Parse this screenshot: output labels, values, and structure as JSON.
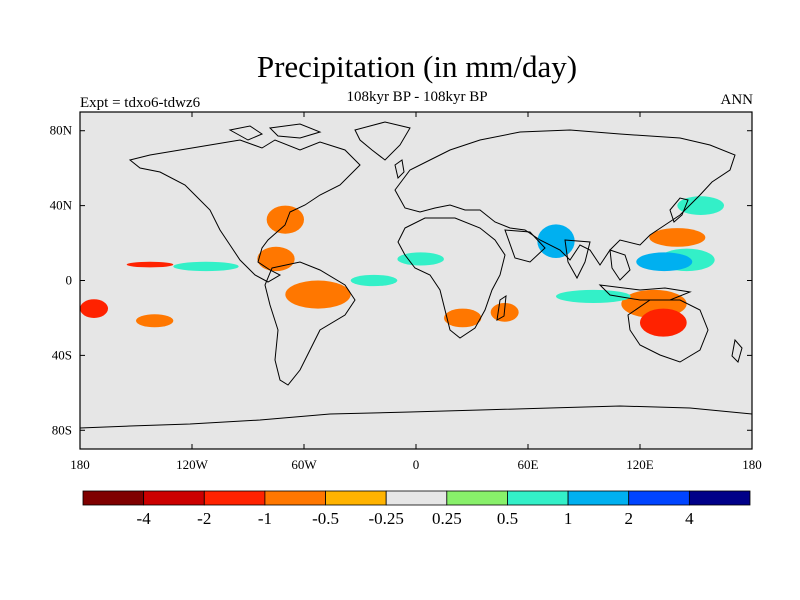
{
  "figure": {
    "title": "Precipitation (in mm/day)",
    "subtitle": "108kyr BP - 108kyr BP",
    "left_label": "Expt = tdxo6-tdwz6",
    "right_label": "ANN"
  },
  "map": {
    "projection": "cylindrical-equidistant",
    "lon_range": [
      -180,
      180
    ],
    "lat_range": [
      -90,
      90
    ],
    "background_color": "#e6e6e6",
    "coastline_color": "#000000",
    "x_ticks": [
      {
        "lon": -180,
        "label": "180"
      },
      {
        "lon": -120,
        "label": "120W"
      },
      {
        "lon": -60,
        "label": "60W"
      },
      {
        "lon": 0,
        "label": "0"
      },
      {
        "lon": 60,
        "label": "60E"
      },
      {
        "lon": 120,
        "label": "120E"
      },
      {
        "lon": 180,
        "label": "180"
      }
    ],
    "y_ticks": [
      {
        "lat": 80,
        "label": "80N"
      },
      {
        "lat": 40,
        "label": "40N"
      },
      {
        "lat": 0,
        "label": "0"
      },
      {
        "lat": -40,
        "label": "40S"
      },
      {
        "lat": -80,
        "label": "80S"
      }
    ]
  },
  "colorbar": {
    "colors": [
      "#7f0000",
      "#cc0000",
      "#ff2200",
      "#ff7700",
      "#ffb300",
      "#e6e6e6",
      "#88f06a",
      "#33f0c8",
      "#00b0f0",
      "#0044ff",
      "#000088"
    ],
    "labels": [
      "-4",
      "-2",
      "-1",
      "-0.5",
      "-0.25",
      "0.25",
      "0.5",
      "1",
      "2",
      "4"
    ]
  },
  "chart_data": {
    "type": "heatmap",
    "title": "Precipitation (in mm/day)",
    "subtitle": "108kyr BP - 108kyr BP",
    "xlim": [
      -180,
      180
    ],
    "ylim": [
      -90,
      90
    ],
    "levels": [
      -4,
      -2,
      -1,
      -0.5,
      -0.25,
      0.25,
      0.5,
      1,
      2,
      4
    ],
    "features": [
      {
        "name": "wpac-n-green",
        "lon": [
          130,
          160
        ],
        "lat": [
          5,
          17
        ],
        "level": 0.5
      },
      {
        "name": "wpac-n-cyan",
        "lon": [
          118,
          148
        ],
        "lat": [
          5,
          15
        ],
        "level": 1
      },
      {
        "name": "wpac-n-orange",
        "lon": [
          125,
          155
        ],
        "lat": [
          18,
          28
        ],
        "level": -0.5
      },
      {
        "name": "arabian-sea",
        "lon": [
          65,
          85
        ],
        "lat": [
          12,
          30
        ],
        "level": 1
      },
      {
        "name": "kuroshio",
        "lon": [
          140,
          165
        ],
        "lat": [
          35,
          45
        ],
        "level": 0.5
      },
      {
        "name": "maritime-cont",
        "lon": [
          110,
          145
        ],
        "lat": [
          -20,
          -5
        ],
        "level": -0.5
      },
      {
        "name": "australia",
        "lon": [
          120,
          145
        ],
        "lat": [
          -30,
          -15
        ],
        "level": -1
      },
      {
        "name": "indian-ocean-s",
        "lon": [
          75,
          115
        ],
        "lat": [
          -12,
          -5
        ],
        "level": 0.5
      },
      {
        "name": "se-pacific-w",
        "lon": [
          -180,
          -165
        ],
        "lat": [
          -20,
          -10
        ],
        "level": -1
      },
      {
        "name": "se-pacific-mid",
        "lon": [
          -150,
          -130
        ],
        "lat": [
          -25,
          -18
        ],
        "level": -0.5
      },
      {
        "name": "e-pacific-itcz",
        "lon": [
          -130,
          -95
        ],
        "lat": [
          5,
          10
        ],
        "level": 0.5
      },
      {
        "name": "e-pacific-itcz-dry",
        "lon": [
          -155,
          -130
        ],
        "lat": [
          7,
          10
        ],
        "level": -1
      },
      {
        "name": "caribbean",
        "lon": [
          -85,
          -65
        ],
        "lat": [
          5,
          18
        ],
        "level": -0.5
      },
      {
        "name": "n-brazil",
        "lon": [
          -70,
          -35
        ],
        "lat": [
          -15,
          0
        ],
        "level": -0.5
      },
      {
        "name": "atlantic-itcz",
        "lon": [
          -35,
          -10
        ],
        "lat": [
          -3,
          3
        ],
        "level": 0.5
      },
      {
        "name": "gulf-stream",
        "lon": [
          -80,
          -60
        ],
        "lat": [
          25,
          40
        ],
        "level": -0.5
      },
      {
        "name": "se-africa",
        "lon": [
          15,
          35
        ],
        "lat": [
          -25,
          -15
        ],
        "level": -0.5
      },
      {
        "name": "madagascar",
        "lon": [
          40,
          55
        ],
        "lat": [
          -22,
          -12
        ],
        "level": -0.5
      },
      {
        "name": "w-africa",
        "lon": [
          -10,
          15
        ],
        "lat": [
          8,
          15
        ],
        "level": 0.5
      }
    ]
  }
}
